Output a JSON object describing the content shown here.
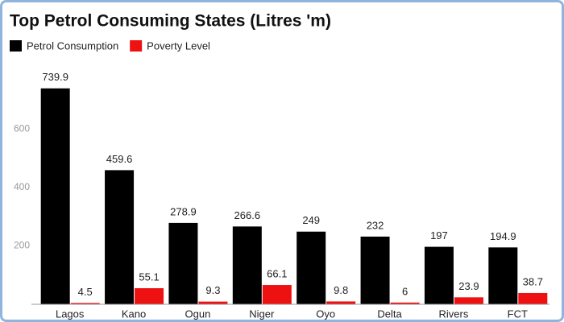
{
  "chart_data": {
    "type": "bar",
    "title": "Top Petrol Consuming States (Litres 'm)",
    "categories": [
      "Lagos",
      "Kano",
      "Ogun",
      "Niger",
      "Oyo",
      "Delta",
      "Rivers",
      "FCT"
    ],
    "series": [
      {
        "name": "Petrol Consumption",
        "color": "#000000",
        "values": [
          739.9,
          459.6,
          278.9,
          266.6,
          249,
          232,
          197,
          194.9
        ]
      },
      {
        "name": "Poverty Level",
        "color": "#ee1111",
        "values": [
          4.5,
          55.1,
          9.3,
          66.1,
          9.8,
          6,
          23.9,
          38.7
        ]
      }
    ],
    "ylim": [
      0,
      800
    ],
    "yticks": [
      200,
      400,
      600
    ],
    "grid": false,
    "legend": "top-left"
  }
}
